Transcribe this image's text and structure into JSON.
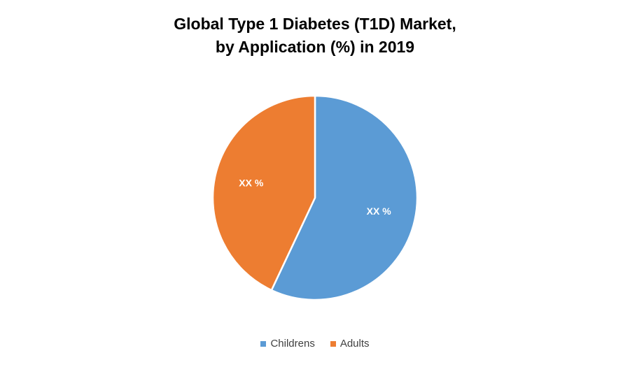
{
  "chart_data": {
    "type": "pie",
    "title_line1": "Global Type 1 Diabetes (T1D)  Market,",
    "title_line2": "by Application (%) in 2019",
    "slices": [
      {
        "name": "Childrens",
        "value": 57,
        "label": "XX %",
        "color": "#5b9bd5"
      },
      {
        "name": "Adults",
        "value": 43,
        "label": "XX %",
        "color": "#ed7d31"
      }
    ],
    "legend_position": "bottom"
  }
}
